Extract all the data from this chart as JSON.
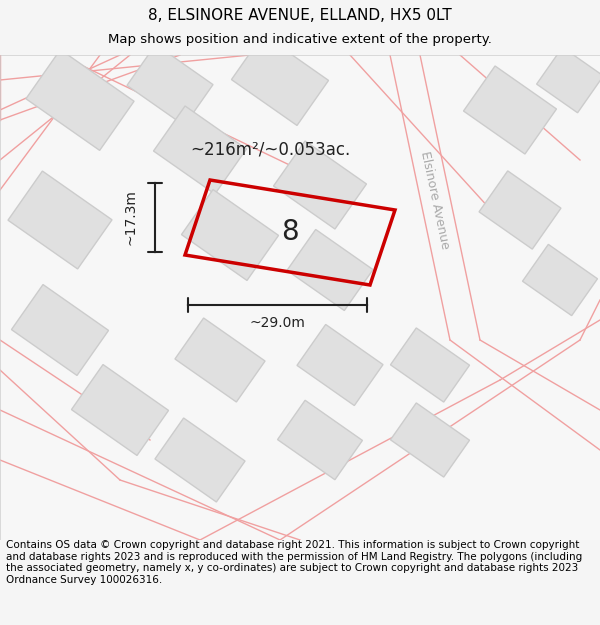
{
  "title": "8, ELSINORE AVENUE, ELLAND, HX5 0LT",
  "subtitle": "Map shows position and indicative extent of the property.",
  "area_label": "~216m²/~0.053ac.",
  "width_label": "~29.0m",
  "height_label": "~17.3m",
  "plot_number": "8",
  "road_label": "Elsinore Avenue",
  "footer": "Contains OS data © Crown copyright and database right 2021. This information is subject to Crown copyright and database rights 2023 and is reproduced with the permission of HM Land Registry. The polygons (including the associated geometry, namely x, y co-ordinates) are subject to Crown copyright and database rights 2023 Ordnance Survey 100026316.",
  "bg_color": "#f5f5f5",
  "map_bg": "#f0f0f0",
  "building_fill": "#e0e0e0",
  "building_edge": "#cccccc",
  "road_line_color": "#f0a0a0",
  "plot_color": "#cc0000",
  "dim_color": "#222222",
  "title_fontsize": 11,
  "subtitle_fontsize": 9.5,
  "footer_fontsize": 7.5
}
